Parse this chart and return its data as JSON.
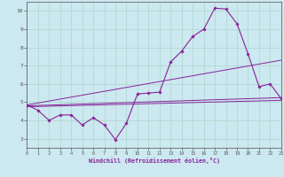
{
  "xlabel": "Windchill (Refroidissement éolien,°C)",
  "bg_color": "#cce8f0",
  "line_color": "#882299",
  "xlim": [
    0,
    23
  ],
  "ylim": [
    2.5,
    10.5
  ],
  "xticks": [
    0,
    1,
    2,
    3,
    4,
    5,
    6,
    7,
    8,
    9,
    10,
    11,
    12,
    13,
    14,
    15,
    16,
    17,
    18,
    19,
    20,
    21,
    22,
    23
  ],
  "yticks": [
    3,
    4,
    5,
    6,
    7,
    8,
    9,
    10
  ],
  "line1_x": [
    0,
    1,
    2,
    3,
    4,
    5,
    6,
    7,
    8,
    9,
    10,
    11,
    12,
    13,
    14,
    15,
    16,
    17,
    18,
    19,
    20,
    21,
    22,
    23
  ],
  "line1_y": [
    4.85,
    4.55,
    4.0,
    4.3,
    4.3,
    3.75,
    4.15,
    3.75,
    2.95,
    3.85,
    5.45,
    5.5,
    5.55,
    7.2,
    7.8,
    8.6,
    9.0,
    10.15,
    10.1,
    9.3,
    7.65,
    5.85,
    6.0,
    5.2
  ],
  "line2_x": [
    0,
    23
  ],
  "line2_y": [
    4.85,
    7.3
  ],
  "line3_x": [
    0,
    23
  ],
  "line3_y": [
    4.8,
    5.25
  ],
  "line4_x": [
    0,
    23
  ],
  "line4_y": [
    4.75,
    5.1
  ],
  "grid_color": "#aad8cc"
}
